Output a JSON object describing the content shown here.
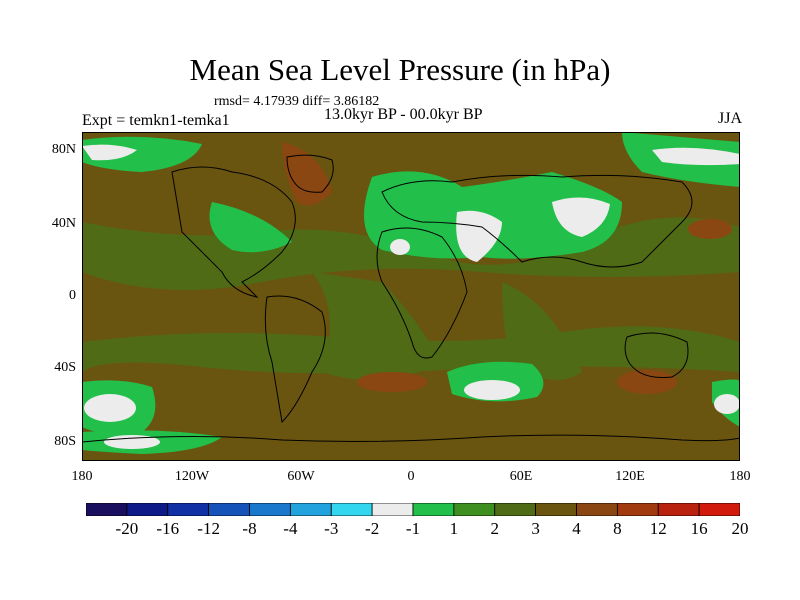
{
  "title": "Mean Sea Level Pressure (in hPa)",
  "stats": "rmsd= 4.17939 diff= 3.86182",
  "period": "13.0kyr BP - 00.0kyr BP",
  "expt": "Expt = temkn1-temka1",
  "season": "JJA",
  "lat_labels": [
    "80N",
    "40N",
    "0",
    "40S",
    "80S"
  ],
  "lon_labels": [
    "180",
    "120W",
    "60W",
    "0",
    "60E",
    "120E",
    "180"
  ],
  "colorbar": {
    "colors": [
      "#1a0f5e",
      "#0d1a87",
      "#1230a6",
      "#1653b8",
      "#1a78cc",
      "#23a3dd",
      "#33d6ef",
      "#ececec",
      "#22c04a",
      "#3f8e20",
      "#4f6b15",
      "#6a5510",
      "#8a4712",
      "#a23a10",
      "#b8220e",
      "#d21a0c"
    ],
    "labels": [
      "-20",
      "-16",
      "-12",
      "-8",
      "-4",
      "-3",
      "-2",
      "-1",
      "1",
      "2",
      "3",
      "4",
      "8",
      "12",
      "16",
      "20"
    ]
  }
}
